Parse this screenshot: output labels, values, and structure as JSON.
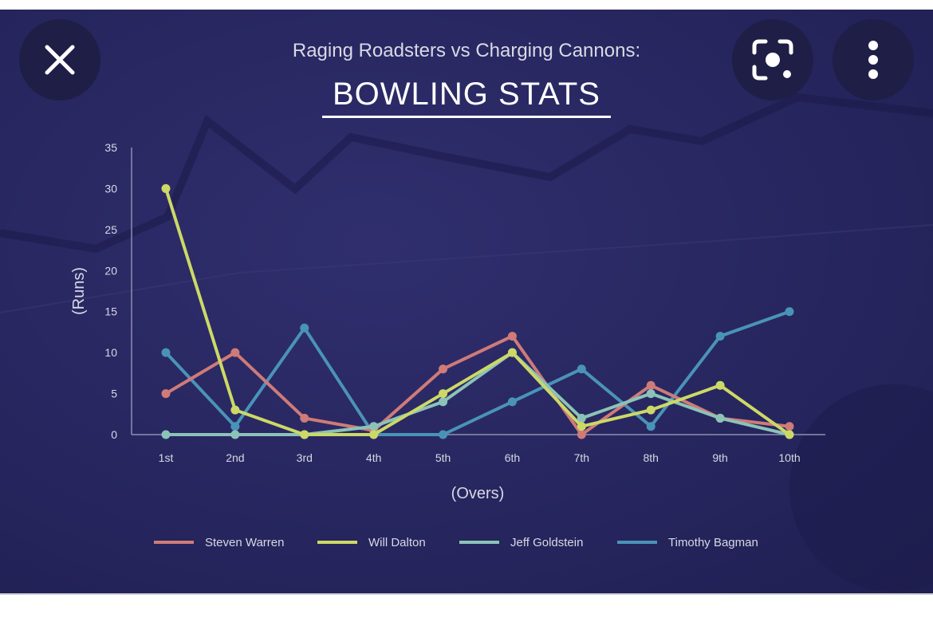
{
  "toolbar": {
    "close_label": "Close",
    "lens_label": "Search image",
    "more_label": "More options"
  },
  "colors": {
    "Steven Warren": "#cf7b78",
    "Will Dalton": "#ccd966",
    "Jeff Goldstein": "#8cc3b8",
    "Timothy Bagman": "#4a93b8"
  },
  "chart_data": {
    "type": "line",
    "title": "BOWLING STATS",
    "subtitle": "Raging Roadsters vs Charging Cannons:",
    "xlabel": "(Overs)",
    "ylabel": "(Runs)",
    "ylim": [
      0,
      35
    ],
    "yticks": [
      0,
      5,
      10,
      15,
      20,
      25,
      30,
      35
    ],
    "categories": [
      "1st",
      "2nd",
      "3rd",
      "4th",
      "5th",
      "6th",
      "7th",
      "8th",
      "9th",
      "10th"
    ],
    "legend_position": "bottom",
    "series": [
      {
        "name": "Steven Warren",
        "values": [
          5,
          10,
          2,
          0.5,
          8,
          12,
          0,
          6,
          2,
          1
        ]
      },
      {
        "name": "Will Dalton",
        "values": [
          30,
          3,
          0,
          0,
          5,
          10,
          1,
          3,
          6,
          0
        ]
      },
      {
        "name": "Jeff Goldstein",
        "values": [
          0,
          0,
          0,
          1,
          4,
          10,
          2,
          5,
          2,
          0
        ]
      },
      {
        "name": "Timothy Bagman",
        "values": [
          10,
          1,
          13,
          0,
          0,
          4,
          8,
          1,
          12,
          15
        ]
      }
    ]
  }
}
